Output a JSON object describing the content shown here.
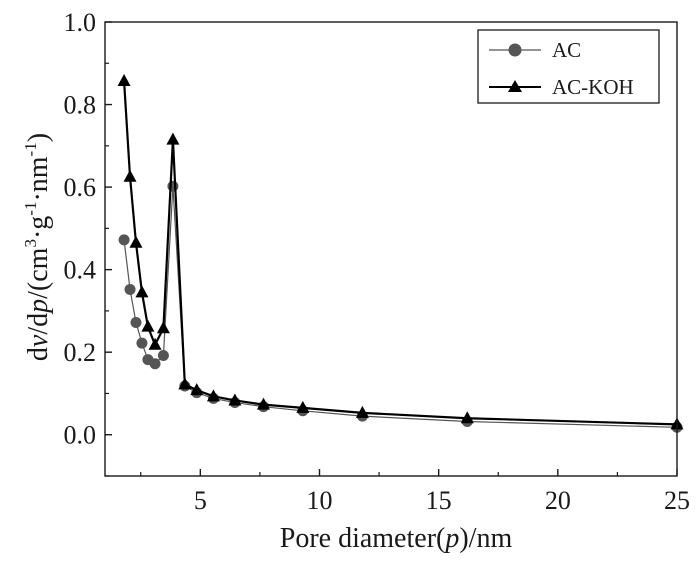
{
  "chart_data": {
    "type": "line",
    "xlabel": "Pore diameter(p)/nm",
    "ylabel": "dv/dp/(cm3·g-1·nm-1)",
    "xlim": [
      1,
      25
    ],
    "ylim": [
      -0.1,
      1.0
    ],
    "x_ticks": [
      "5",
      "10",
      "15",
      "20",
      "25"
    ],
    "y_ticks": [
      "0.0",
      "0.2",
      "0.4",
      "0.6",
      "0.8",
      "1.0"
    ],
    "grid": false,
    "legend_position": "top-right",
    "series": [
      {
        "name": "AC",
        "marker": "circle",
        "color": "#555555",
        "points": [
          [
            1.8,
            0.472
          ],
          [
            2.05,
            0.352
          ],
          [
            2.3,
            0.272
          ],
          [
            2.55,
            0.222
          ],
          [
            2.8,
            0.182
          ],
          [
            3.1,
            0.172
          ],
          [
            3.45,
            0.192
          ],
          [
            3.85,
            0.602
          ],
          [
            4.35,
            0.118
          ],
          [
            4.85,
            0.102
          ],
          [
            5.55,
            0.088
          ],
          [
            6.45,
            0.078
          ],
          [
            7.65,
            0.068
          ],
          [
            9.3,
            0.058
          ],
          [
            11.8,
            0.045
          ],
          [
            16.2,
            0.032
          ],
          [
            25,
            0.018
          ]
        ]
      },
      {
        "name": "AC-KOH",
        "marker": "triangle",
        "color": "#000000",
        "points": [
          [
            1.8,
            0.857
          ],
          [
            2.05,
            0.625
          ],
          [
            2.3,
            0.465
          ],
          [
            2.55,
            0.345
          ],
          [
            2.8,
            0.262
          ],
          [
            3.1,
            0.218
          ],
          [
            3.45,
            0.258
          ],
          [
            3.85,
            0.715
          ],
          [
            4.35,
            0.122
          ],
          [
            4.85,
            0.108
          ],
          [
            5.55,
            0.093
          ],
          [
            6.45,
            0.083
          ],
          [
            7.65,
            0.073
          ],
          [
            9.3,
            0.065
          ],
          [
            11.8,
            0.053
          ],
          [
            16.2,
            0.04
          ],
          [
            25,
            0.025
          ]
        ]
      }
    ]
  }
}
